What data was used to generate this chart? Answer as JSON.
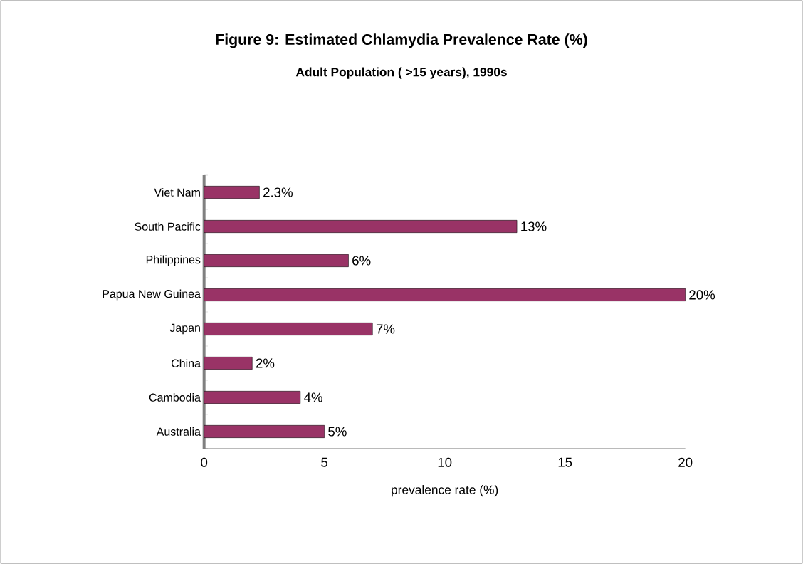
{
  "chart_data": {
    "type": "bar",
    "orientation": "horizontal",
    "title": "Figure 9: Estimated Chlamydia Prevalence Rate (%)",
    "subtitle": "Adult Population ( >15 years), 1990s",
    "xlabel": "prevalence rate (%)",
    "categories": [
      "Viet Nam",
      "South Pacific",
      "Philippines",
      "Papua New Guinea",
      "Japan",
      "China",
      "Cambodia",
      "Australia"
    ],
    "values": [
      2.3,
      13,
      6,
      20,
      7,
      2,
      4,
      5
    ],
    "value_labels": [
      "2.3%",
      "13%",
      "6%",
      "20%",
      "7%",
      "2%",
      "4%",
      "5%"
    ],
    "color": "#993366",
    "xlim": [
      0,
      20
    ],
    "xticks": [
      0,
      5,
      10,
      15,
      20
    ],
    "grid": false
  }
}
